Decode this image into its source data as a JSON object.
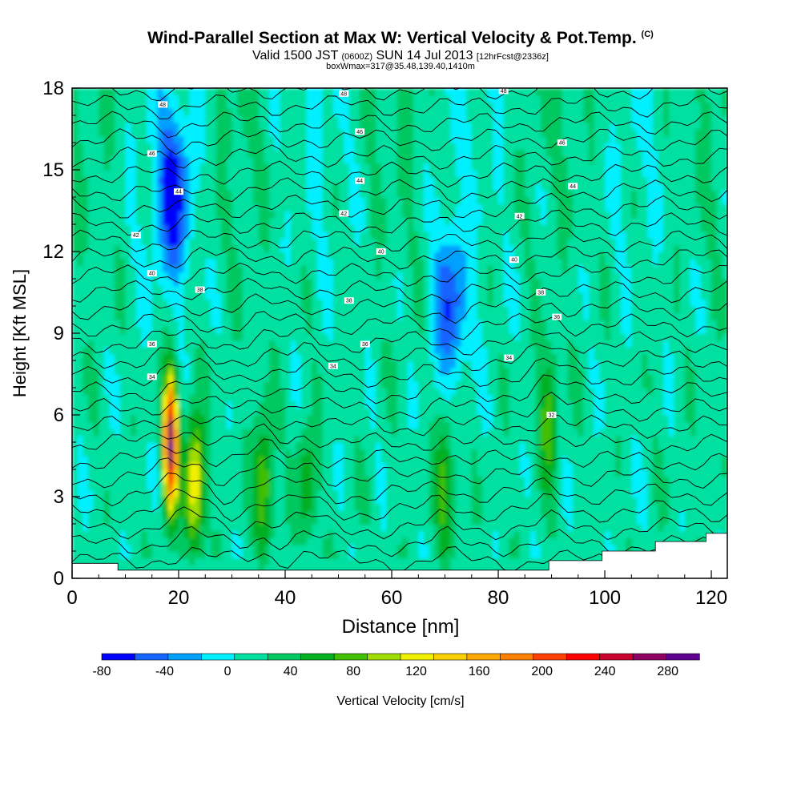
{
  "header": {
    "title": "Wind-Parallel Section at Max W: Vertical Velocity & Pot.Temp.",
    "copyright": "(C)",
    "subtitle_main_a": "Valid 1500 JST",
    "subtitle_utc": "(0600Z)",
    "subtitle_main_b": "SUN 14 Jul 2013",
    "subtitle_fcst": "[12hrFcst@2336z]",
    "subtitle_box": "boxWmax=317@35.48,139.40,1410m"
  },
  "colors": {
    "background_field": "#00f0ff",
    "terrain": "#ffffff",
    "contour": "#000000"
  },
  "chart_data": {
    "type": "heatmap",
    "xlabel": "Distance [nm]",
    "ylabel": "Height [Kft MSL]",
    "xlim": [
      0,
      123
    ],
    "ylim": [
      0,
      18
    ],
    "xticks": [
      0,
      20,
      40,
      60,
      80,
      100,
      120
    ],
    "yticks": [
      0,
      3,
      6,
      9,
      12,
      15,
      18
    ],
    "colorbar": {
      "label": "Vertical Velocity [cm/s]",
      "range": [
        -80,
        300
      ],
      "step": 20,
      "tick_labels": [
        -80,
        -40,
        0,
        40,
        80,
        120,
        160,
        200,
        240,
        280
      ],
      "colors": [
        "#0000ff",
        "#1464ff",
        "#00a0ff",
        "#00f0ff",
        "#00e0a0",
        "#00c860",
        "#00b020",
        "#40c000",
        "#a0dc00",
        "#f0f000",
        "#f8d000",
        "#ffa800",
        "#ff8000",
        "#ff4000",
        "#ff0000",
        "#c80030",
        "#900060",
        "#600090"
      ]
    },
    "features": [
      {
        "name": "updraft",
        "x": 18.5,
        "y": 5.0,
        "wmax": 250
      },
      {
        "name": "updraft",
        "x": 23,
        "y": 3.5,
        "wmax": 125
      },
      {
        "name": "updraft",
        "x": 36,
        "y": 3.5,
        "wmax": 85
      },
      {
        "name": "updraft",
        "x": 44,
        "y": 3.5,
        "wmax": 55
      },
      {
        "name": "updraft",
        "x": 70,
        "y": 3.5,
        "wmax": 75
      },
      {
        "name": "updraft",
        "x": 89.5,
        "y": 6.0,
        "wmax": 75
      },
      {
        "name": "downdraft",
        "x": 19,
        "y": 14.0,
        "wmax": -70
      },
      {
        "name": "downdraft",
        "x": 71,
        "y": 10.0,
        "wmax": -55
      }
    ],
    "theta_labels": [
      {
        "x": 17,
        "y": 17.4,
        "text": "48"
      },
      {
        "x": 15,
        "y": 15.6,
        "text": "46"
      },
      {
        "x": 20,
        "y": 14.2,
        "text": "44"
      },
      {
        "x": 12,
        "y": 12.6,
        "text": "42"
      },
      {
        "x": 15,
        "y": 11.2,
        "text": "40"
      },
      {
        "x": 24,
        "y": 10.6,
        "text": "38"
      },
      {
        "x": 15,
        "y": 8.6,
        "text": "36"
      },
      {
        "x": 15,
        "y": 7.4,
        "text": "34"
      },
      {
        "x": 51,
        "y": 17.8,
        "text": "48"
      },
      {
        "x": 54,
        "y": 16.4,
        "text": "46"
      },
      {
        "x": 54,
        "y": 14.6,
        "text": "44"
      },
      {
        "x": 51,
        "y": 13.4,
        "text": "42"
      },
      {
        "x": 58,
        "y": 12.0,
        "text": "40"
      },
      {
        "x": 52,
        "y": 10.2,
        "text": "38"
      },
      {
        "x": 55,
        "y": 8.6,
        "text": "36"
      },
      {
        "x": 49,
        "y": 7.8,
        "text": "34"
      },
      {
        "x": 81,
        "y": 17.9,
        "text": "48"
      },
      {
        "x": 92,
        "y": 16.0,
        "text": "46"
      },
      {
        "x": 94,
        "y": 14.4,
        "text": "44"
      },
      {
        "x": 84,
        "y": 13.3,
        "text": "42"
      },
      {
        "x": 83,
        "y": 11.7,
        "text": "40"
      },
      {
        "x": 88,
        "y": 10.5,
        "text": "38"
      },
      {
        "x": 91,
        "y": 9.6,
        "text": "36"
      },
      {
        "x": 82,
        "y": 8.1,
        "text": "34"
      },
      {
        "x": 90,
        "y": 6.0,
        "text": "32"
      }
    ]
  }
}
